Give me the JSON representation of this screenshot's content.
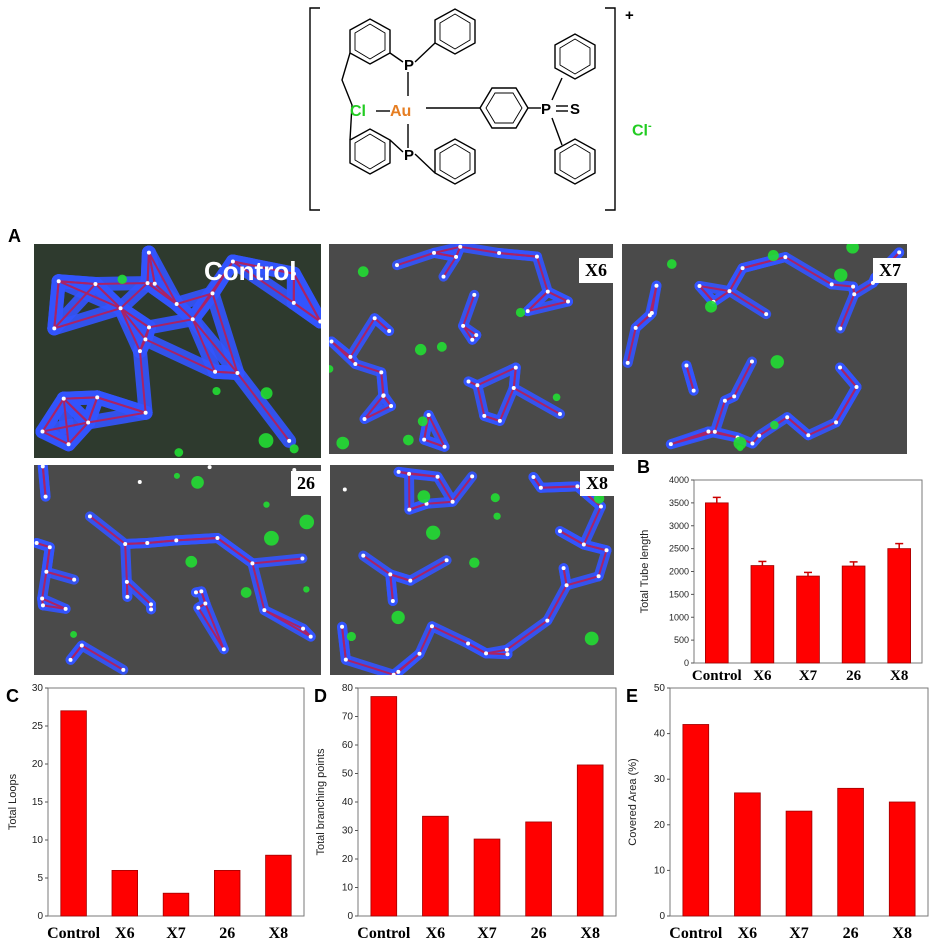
{
  "structure": {
    "charge": "+",
    "counter_ion": "Cl",
    "counter_ion_sign": "-",
    "metal": "Au",
    "chloride": "Cl",
    "phosphorus_1": "P",
    "phosphorus_2": "P",
    "phosphorus_3": "P",
    "sulfur": "S",
    "colors": {
      "metal": "#e67e22",
      "chloride": "#22cc22",
      "bonds": "#000000"
    }
  },
  "panels": {
    "A": "A",
    "B": "B",
    "C": "C",
    "D": "D",
    "E": "E"
  },
  "micrographs": [
    {
      "label": "Control"
    },
    {
      "label": "X6"
    },
    {
      "label": "X7"
    },
    {
      "label": "26"
    },
    {
      "label": "X8"
    }
  ],
  "colors": {
    "bar": "#ff0000",
    "bar_stroke": "#a00000",
    "network": "#3355ff",
    "tube": "#aa2266",
    "cell": "#22dd33",
    "background": "#4a4a4a"
  },
  "chart_data": [
    {
      "panel": "B",
      "type": "bar",
      "categories": [
        "Control",
        "X6",
        "X7",
        "26",
        "X8"
      ],
      "values": [
        3500,
        2130,
        1900,
        2120,
        2500
      ],
      "errors": [
        120,
        90,
        80,
        90,
        110
      ],
      "ylabel": "Total Tube length",
      "ylim": [
        0,
        4000
      ],
      "yticks": [
        "0",
        "500",
        "1000",
        "1500",
        "2000",
        "2500",
        "3000",
        "3500",
        "4000"
      ],
      "grid": false
    },
    {
      "panel": "C",
      "type": "bar",
      "categories": [
        "Control",
        "X6",
        "X7",
        "26",
        "X8"
      ],
      "values": [
        27,
        6,
        3,
        6,
        8
      ],
      "ylabel": "Total Loops",
      "ylim": [
        0,
        30
      ],
      "yticks": [
        "0",
        "5",
        "10",
        "15",
        "20",
        "25",
        "30"
      ],
      "grid": false
    },
    {
      "panel": "D",
      "type": "bar",
      "categories": [
        "Control",
        "X6",
        "X7",
        "26",
        "X8"
      ],
      "values": [
        77,
        35,
        27,
        33,
        53
      ],
      "ylabel": "Total branching points",
      "ylim": [
        0,
        80
      ],
      "yticks": [
        "0",
        "10",
        "20",
        "30",
        "40",
        "50",
        "60",
        "70",
        "80"
      ],
      "grid": false
    },
    {
      "panel": "E",
      "type": "bar",
      "categories": [
        "Control",
        "X6",
        "X7",
        "26",
        "X8"
      ],
      "values": [
        42,
        27,
        23,
        28,
        25
      ],
      "ylabel": "Covered Area (%)",
      "ylim": [
        0,
        50
      ],
      "yticks": [
        "0",
        "10",
        "20",
        "30",
        "40",
        "50"
      ],
      "grid": false
    }
  ]
}
